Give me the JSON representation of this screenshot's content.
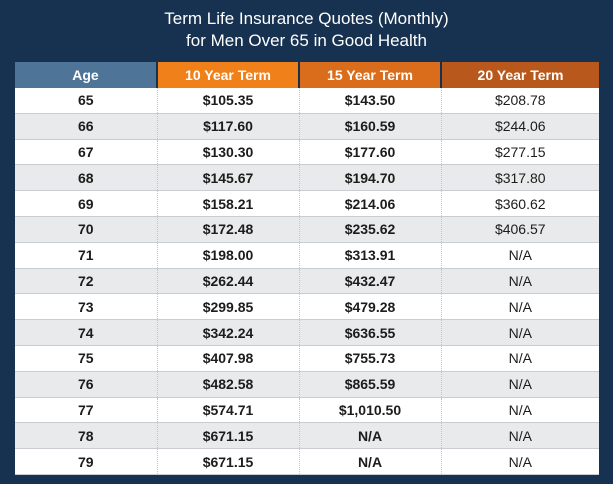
{
  "title": {
    "line1": "Term Life Insurance Quotes (Monthly)",
    "line2": "for Men Over 65 in Good Health"
  },
  "colors": {
    "background": "#173150",
    "age_header": "#4e7498",
    "term10_header": "#f08019",
    "term15_header": "#da6d1c",
    "term20_header": "#b9581c"
  },
  "table": {
    "headers": [
      "Age",
      "10 Year Term",
      "15 Year Term",
      "20 Year Term"
    ],
    "rows": [
      [
        "65",
        "$105.35",
        "$143.50",
        "$208.78"
      ],
      [
        "66",
        "$117.60",
        "$160.59",
        "$244.06"
      ],
      [
        "67",
        "$130.30",
        "$177.60",
        "$277.15"
      ],
      [
        "68",
        "$145.67",
        "$194.70",
        "$317.80"
      ],
      [
        "69",
        "$158.21",
        "$214.06",
        "$360.62"
      ],
      [
        "70",
        "$172.48",
        "$235.62",
        "$406.57"
      ],
      [
        "71",
        "$198.00",
        "$313.91",
        "N/A"
      ],
      [
        "72",
        "$262.44",
        "$432.47",
        "N/A"
      ],
      [
        "73",
        "$299.85",
        "$479.28",
        "N/A"
      ],
      [
        "74",
        "$342.24",
        "$636.55",
        "N/A"
      ],
      [
        "75",
        "$407.98",
        "$755.73",
        "N/A"
      ],
      [
        "76",
        "$482.58",
        "$865.59",
        "N/A"
      ],
      [
        "77",
        "$574.71",
        "$1,010.50",
        "N/A"
      ],
      [
        "78",
        "$671.15",
        "N/A",
        "N/A"
      ],
      [
        "79",
        "$671.15",
        "N/A",
        "N/A"
      ]
    ]
  }
}
